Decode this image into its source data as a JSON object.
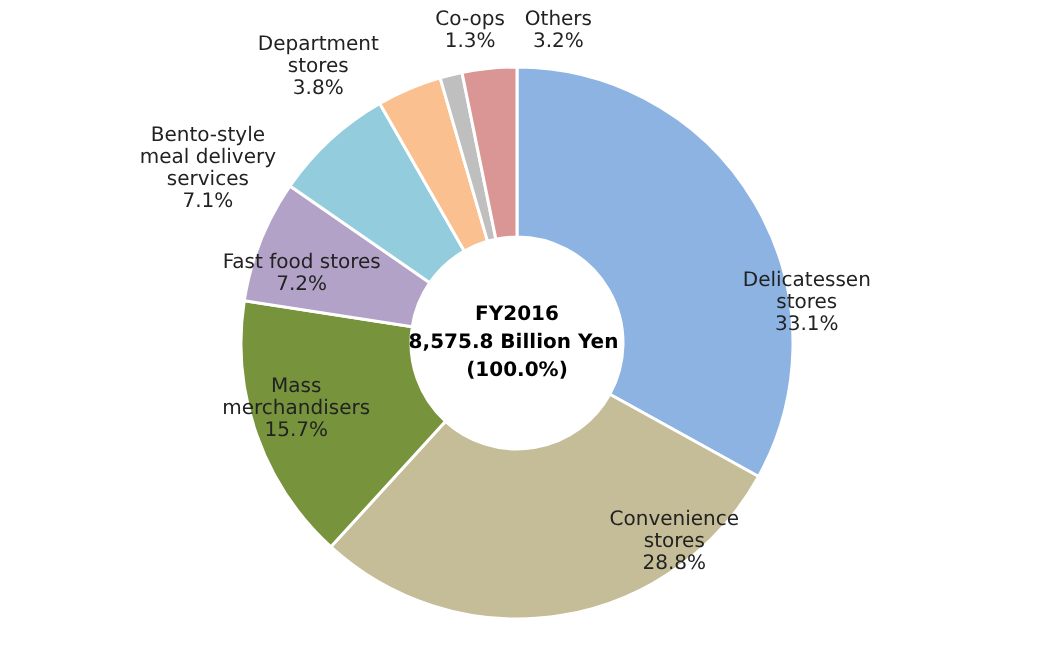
{
  "chart_data": {
    "type": "donut",
    "categories": [
      "Delicatessen stores",
      "Convenience stores",
      "Mass merchandisers",
      "Fast food stores",
      "Bento-style meal delivery services",
      "Department stores",
      "Co-ops",
      "Others"
    ],
    "values": [
      33.1,
      28.8,
      15.7,
      7.2,
      7.1,
      3.8,
      1.3,
      3.2
    ],
    "colors": [
      "#8db3e2",
      "#c4bd97",
      "#77933c",
      "#b3a2c7",
      "#93cddd",
      "#fac090",
      "#bfbfbf",
      "#d99694"
    ],
    "value_labels": [
      "33.1%",
      "28.8%",
      "15.7%",
      "7.2%",
      "7.1%",
      "3.8%",
      "1.3%",
      "3.2%"
    ],
    "annotations": [
      "FY2016",
      "8,575.8  Billion Yen",
      "(100.0%)"
    ],
    "legend": false
  }
}
